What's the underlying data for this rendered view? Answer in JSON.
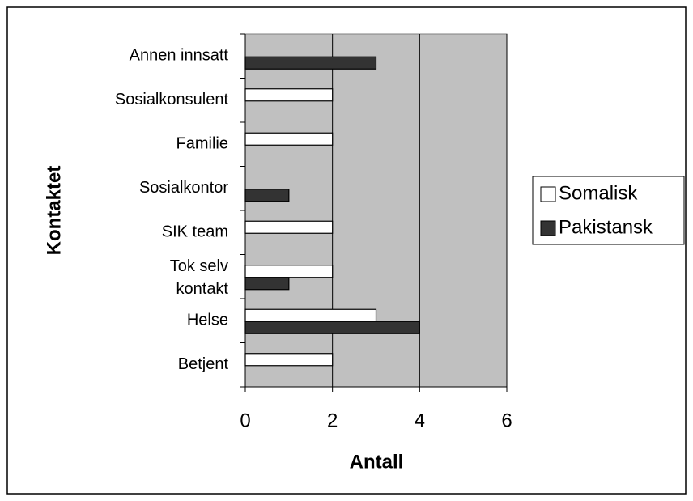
{
  "chart_data": {
    "type": "bar",
    "orientation": "horizontal",
    "x_label": "Antall",
    "y_label": "Kontaktet",
    "categories": [
      "Annen innsatt",
      "Sosialkonsulent",
      "Familie",
      "Sosialkontor",
      "SIK team",
      "Tok selv kontakt",
      "Helse",
      "Betjent"
    ],
    "series": [
      {
        "name": "Somalisk",
        "color": "#ffffff",
        "values": [
          0,
          2,
          2,
          0,
          2,
          2,
          3,
          2
        ]
      },
      {
        "name": "Pakistansk",
        "color": "#333333",
        "values": [
          3,
          0,
          0,
          1,
          0,
          1,
          4,
          0
        ]
      }
    ],
    "xlim": [
      0,
      6
    ],
    "xticks": [
      0,
      2,
      4,
      6
    ],
    "grid": true,
    "plot_background": "#c0c0c0",
    "legend": "right"
  }
}
